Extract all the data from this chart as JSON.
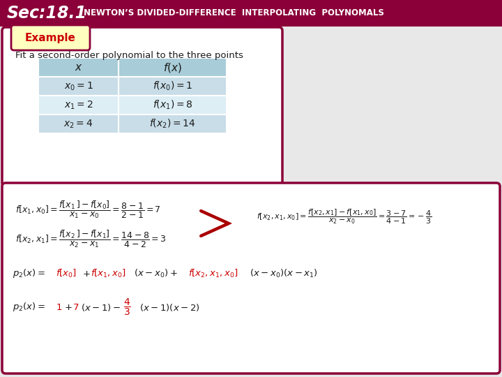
{
  "header_bg": "#8B0038",
  "header_text_sec": "Sec:18.1",
  "header_text_title": "NEWTON’S DIVIDED-DIFFERENCE  INTERPOLATING  POLYNOMALS",
  "slide_bg": "#e8e8e8",
  "example_box_fill": "#ffffc0",
  "example_box_edge": "#8B0038",
  "box1_fill": "#ffffff",
  "box1_edge": "#8B0038",
  "box2_fill": "#ffffff",
  "box2_edge": "#8B0038",
  "table_header_bg": "#a8ccd8",
  "table_row1_bg": "#c8dde8",
  "table_row2_bg": "#ddeef5",
  "red_color": "#cc0000",
  "dark_red": "#aa0000",
  "black_color": "#1a1a1a"
}
